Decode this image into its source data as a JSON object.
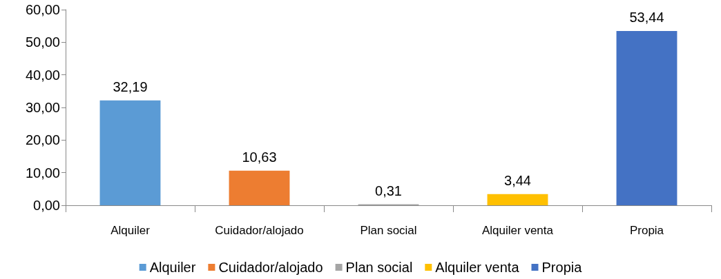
{
  "chart_data": {
    "type": "bar",
    "categories": [
      "Alquiler",
      "Cuidador/alojado",
      "Plan social",
      "Alquiler venta",
      "Propia"
    ],
    "series": [
      {
        "name": "Alquiler",
        "color": "#5b9bd5",
        "values": [
          32.19,
          null,
          null,
          null,
          null
        ],
        "value_labels": [
          "32,19",
          null,
          null,
          null,
          null
        ]
      },
      {
        "name": "Cuidador/alojado",
        "color": "#ed7d31",
        "values": [
          null,
          10.63,
          null,
          null,
          null
        ],
        "value_labels": [
          null,
          "10,63",
          null,
          null,
          null
        ]
      },
      {
        "name": "Plan social",
        "color": "#a5a5a5",
        "values": [
          null,
          null,
          0.31,
          null,
          null
        ],
        "value_labels": [
          null,
          null,
          "0,31",
          null,
          null
        ]
      },
      {
        "name": "Alquiler venta",
        "color": "#ffc000",
        "values": [
          null,
          null,
          null,
          3.44,
          null
        ],
        "value_labels": [
          null,
          null,
          null,
          "3,44",
          null
        ]
      },
      {
        "name": "Propia",
        "color": "#4472c4",
        "values": [
          null,
          null,
          null,
          null,
          53.44
        ],
        "value_labels": [
          null,
          null,
          null,
          null,
          "53,44"
        ]
      }
    ],
    "ylim": [
      0,
      60
    ],
    "yticks": [
      {
        "value": 0,
        "label": "0,00"
      },
      {
        "value": 10,
        "label": "10,00"
      },
      {
        "value": 20,
        "label": "20,00"
      },
      {
        "value": 30,
        "label": "30,00"
      },
      {
        "value": 40,
        "label": "40,00"
      },
      {
        "value": 50,
        "label": "50,00"
      },
      {
        "value": 60,
        "label": "60,00"
      }
    ],
    "grid": false,
    "legend": "bottom"
  }
}
